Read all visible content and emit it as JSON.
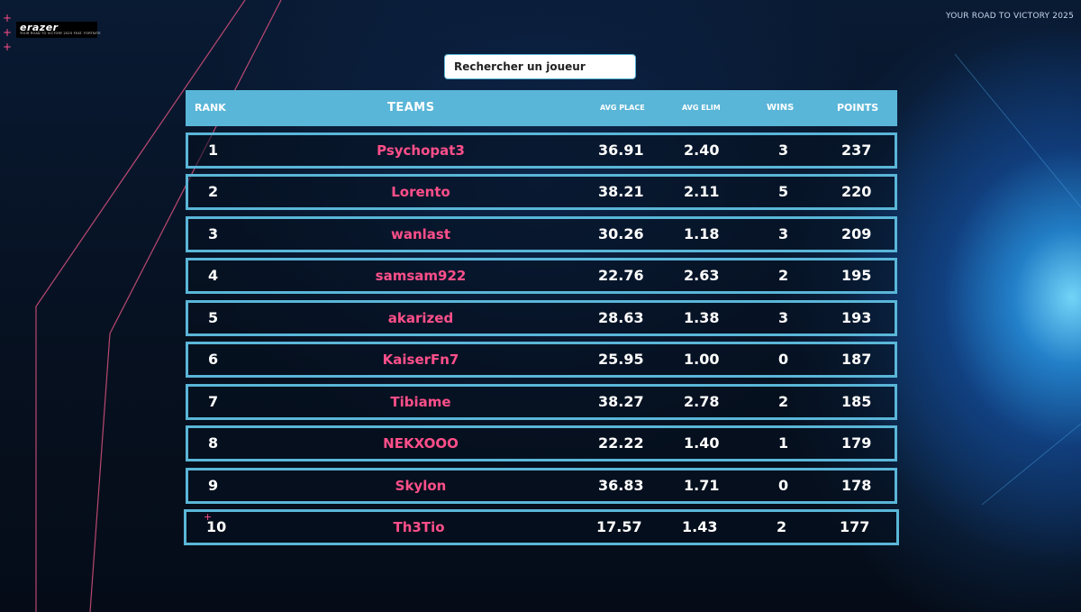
{
  "brand": {
    "logo_text": "erazer",
    "logo_tagline": "YOUR ROAD TO VICTORY 2025 FEAT. FORTNITE",
    "tagline": "YOUR ROAD TO VICTORY 2025"
  },
  "search": {
    "placeholder": "Rechercher un joueur"
  },
  "leaderboard": {
    "headers": {
      "rank": "RANK",
      "teams": "TEAMS",
      "avg_place": "AVG PLACE",
      "avg_elim": "AVG ELIM",
      "wins": "WINS",
      "points": "POINTS"
    },
    "rows": [
      {
        "rank": "1",
        "team": "Psychopat3",
        "avg_place": "36.91",
        "avg_elim": "2.40",
        "wins": "3",
        "points": "237"
      },
      {
        "rank": "2",
        "team": "Lorento",
        "avg_place": "38.21",
        "avg_elim": "2.11",
        "wins": "5",
        "points": "220"
      },
      {
        "rank": "3",
        "team": "wanlast",
        "avg_place": "30.26",
        "avg_elim": "1.18",
        "wins": "3",
        "points": "209"
      },
      {
        "rank": "4",
        "team": "samsam922",
        "avg_place": "22.76",
        "avg_elim": "2.63",
        "wins": "2",
        "points": "195"
      },
      {
        "rank": "5",
        "team": "akarized",
        "avg_place": "28.63",
        "avg_elim": "1.38",
        "wins": "3",
        "points": "193"
      },
      {
        "rank": "6",
        "team": "KaiserFn7",
        "avg_place": "25.95",
        "avg_elim": "1.00",
        "wins": "0",
        "points": "187"
      },
      {
        "rank": "7",
        "team": "Tibiame",
        "avg_place": "38.27",
        "avg_elim": "2.78",
        "wins": "2",
        "points": "185"
      },
      {
        "rank": "8",
        "team": "NEKXOOO",
        "avg_place": "22.22",
        "avg_elim": "1.40",
        "wins": "1",
        "points": "179"
      },
      {
        "rank": "9",
        "team": "Skylon",
        "avg_place": "36.83",
        "avg_elim": "1.71",
        "wins": "0",
        "points": "178"
      },
      {
        "rank": "10",
        "team": "Th3Tio",
        "avg_place": "17.57",
        "avg_elim": "1.43",
        "wins": "2",
        "points": "177"
      }
    ]
  },
  "colors": {
    "accent": "#5ab6d8",
    "team_name": "#ff4f8a",
    "background": "#06101f"
  }
}
